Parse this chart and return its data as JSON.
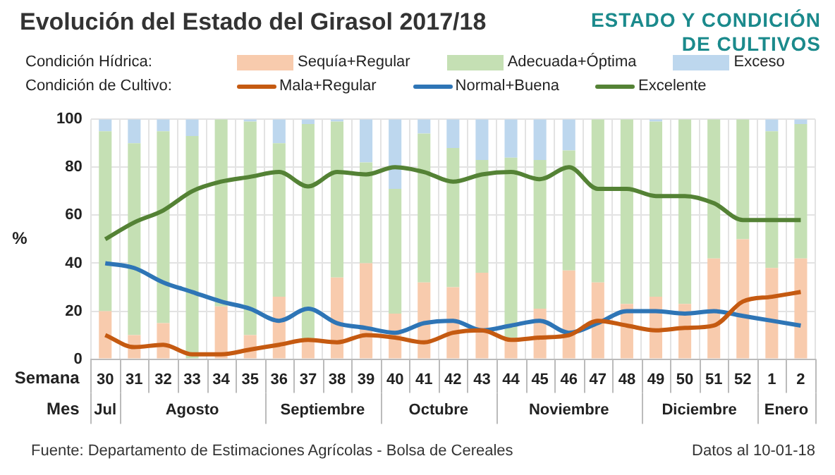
{
  "chart_data": {
    "type": "bar",
    "title": "Evolución del Estado del Girasol 2017/18",
    "subtitle": "ESTADO Y CONDICIÓN DE CULTIVOS",
    "xlabel": "Semana",
    "ylabel": "%",
    "categories": [
      "30",
      "31",
      "32",
      "33",
      "34",
      "35",
      "36",
      "37",
      "38",
      "39",
      "40",
      "41",
      "42",
      "43",
      "44",
      "45",
      "46",
      "47",
      "48",
      "49",
      "50",
      "51",
      "52",
      "1",
      "2"
    ],
    "stacked": true,
    "grid": true,
    "legend": "top",
    "marker": "none",
    "ylim": [
      0,
      100
    ],
    "yticks": [
      0,
      20,
      40,
      60,
      80,
      100
    ],
    "series": [
      {
        "name": "Sequía+Regular",
        "color": "#f8cbad",
        "values": [
          20,
          10,
          15,
          0,
          22,
          10,
          26,
          8,
          34,
          40,
          19,
          32,
          30,
          36,
          9,
          21,
          37,
          32,
          23,
          26,
          23,
          42,
          50,
          38,
          42
        ]
      },
      {
        "name": "Adecuada+Óptima",
        "color": "#c5e0b4",
        "values": [
          75,
          80,
          80,
          93,
          78,
          89,
          64,
          90,
          65,
          42,
          52,
          62,
          58,
          47,
          75,
          62,
          50,
          68,
          77,
          73,
          77,
          58,
          50,
          57,
          56
        ]
      },
      {
        "name": "Exceso",
        "color": "#bdd7ee",
        "values": [
          5,
          10,
          5,
          7,
          0,
          1,
          10,
          2,
          1,
          18,
          29,
          6,
          12,
          17,
          16,
          17,
          13,
          0,
          0,
          1,
          0,
          0,
          0,
          5,
          2
        ]
      },
      {
        "name": "Mala+Regular",
        "type": "line",
        "color": "#c55a11",
        "values": [
          10,
          5,
          6,
          2,
          2,
          4,
          6,
          8,
          7,
          10,
          9,
          7,
          11,
          12,
          8,
          9,
          10,
          16,
          14,
          12,
          13,
          14,
          24,
          26,
          28
        ]
      },
      {
        "name": "Normal+Buena",
        "type": "line",
        "color": "#2e75b6",
        "values": [
          40,
          38,
          32,
          28,
          24,
          21,
          16,
          21,
          15,
          13,
          11,
          15,
          16,
          12,
          14,
          16,
          11,
          15,
          20,
          20,
          19,
          20,
          18,
          16,
          14
        ]
      },
      {
        "name": "Excelente",
        "type": "line",
        "color": "#548235",
        "values": [
          50,
          57,
          62,
          70,
          74,
          76,
          78,
          72,
          78,
          77,
          80,
          78,
          74,
          77,
          78,
          75,
          80,
          71,
          71,
          68,
          68,
          65,
          58,
          58,
          58
        ]
      }
    ],
    "annotations": [
      "Condición Hídrica:",
      "Condición de Cultivo:",
      "Mes",
      "Jul",
      "Agosto",
      "Septiembre",
      "Octubre",
      "Noviembre",
      "Diciembre",
      "Enero",
      "Fuente: Departamento de Estimaciones Agrícolas - Bolsa de Cereales",
      "Datos al 10-01-18"
    ]
  }
}
